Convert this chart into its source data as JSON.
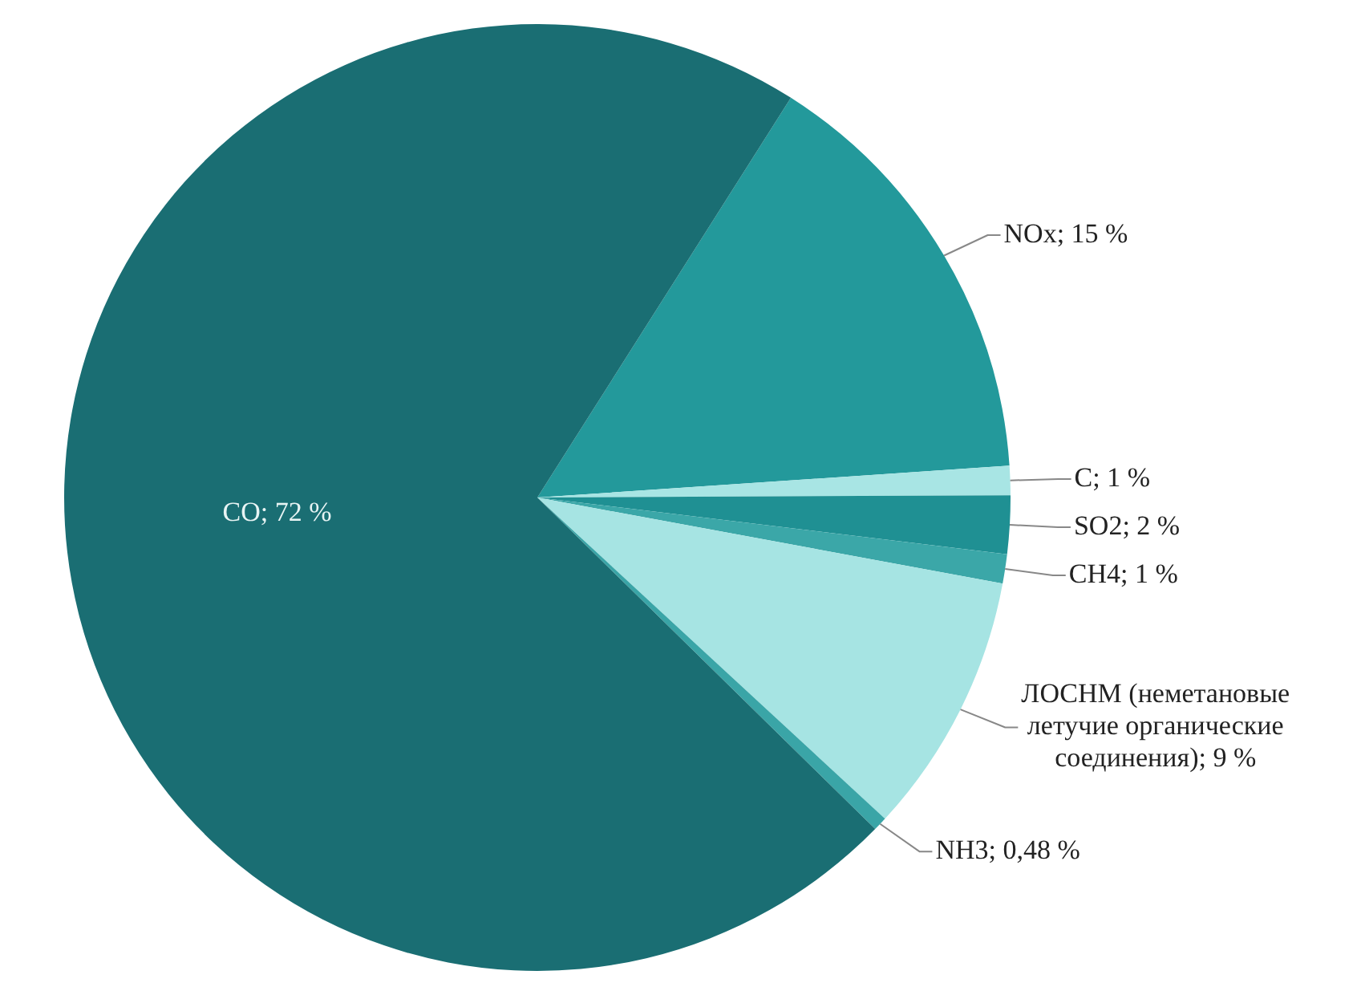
{
  "chart_data": {
    "type": "pie",
    "categories": [
      "NOx",
      "C",
      "SO2",
      "CH4",
      "ЛОСНМ (неметановые летучие органические соединения)",
      "NH3",
      "CO"
    ],
    "values": [
      15,
      1,
      2,
      1,
      9,
      0.48,
      72
    ],
    "value_labels": [
      "15 %",
      "1 %",
      "2 %",
      "1 %",
      "9 %",
      "0,48 %",
      "72 %"
    ],
    "colors": [
      "#23999b",
      "#a8e5e4",
      "#1f9093",
      "#3ba7a8",
      "#a6e4e3",
      "#3aa5a7",
      "#1a6e73"
    ],
    "legend": false
  }
}
